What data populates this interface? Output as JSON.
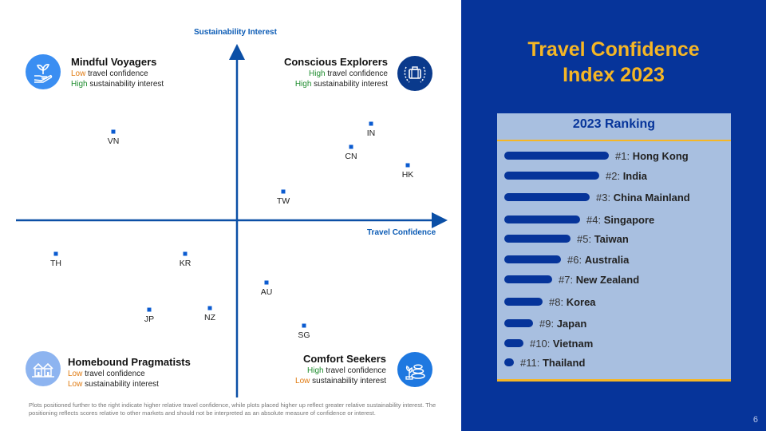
{
  "chart_data": {
    "type": "scatter",
    "xlabel": "Travel Confidence",
    "ylabel": "Sustainability Interest",
    "points": [
      {
        "label": "VN",
        "x": -155,
        "y": 111
      },
      {
        "label": "IN",
        "x": 168,
        "y": 121
      },
      {
        "label": "CN",
        "x": 143,
        "y": 92
      },
      {
        "label": "HK",
        "x": 214,
        "y": 69
      },
      {
        "label": "TW",
        "x": 58,
        "y": 36
      },
      {
        "label": "TH",
        "x": -227,
        "y": -42
      },
      {
        "label": "KR",
        "x": -65,
        "y": -42
      },
      {
        "label": "AU",
        "x": 37,
        "y": -78
      },
      {
        "label": "JP",
        "x": -110,
        "y": -112
      },
      {
        "label": "NZ",
        "x": -34,
        "y": -110
      },
      {
        "label": "SG",
        "x": 84,
        "y": -132
      }
    ],
    "xlim": [
      -277,
      258
    ],
    "ylim": [
      -222,
      218
    ]
  },
  "quadrants": {
    "top_left": {
      "name": "Mindful Voyagers",
      "line1_level": "Low",
      "line1_rest": " travel confidence",
      "line2_level": "High",
      "line2_rest": " sustainability interest",
      "icon": "hand-plant-icon"
    },
    "top_right": {
      "name": "Conscious Explorers",
      "line1_level": "High",
      "line1_rest": " travel confidence",
      "line2_level": "High",
      "line2_rest": " sustainability interest",
      "icon": "suitcase-laurel-icon"
    },
    "bottom_left": {
      "name": "Homebound Pragmatists",
      "line1_level": "Low",
      "line1_rest": " travel confidence",
      "line2_level": "Low",
      "line2_rest": " sustainability interest",
      "icon": "houses-icon"
    },
    "bottom_right": {
      "name": "Comfort Seekers",
      "line1_level": "High",
      "line1_rest": " travel confidence",
      "line2_level": "Low",
      "line2_rest": " sustainability interest",
      "icon": "spa-stones-icon"
    }
  },
  "footnote": "Plots positioned further to the right indicate higher relative travel confidence, while plots placed higher up reflect greater relative sustainability interest. The positioning reflects scores relative to other markets and should not be interpreted as an absolute measure of confidence or interest.",
  "title_line1": "Travel Confidence",
  "title_line2": "Index 2023",
  "ranking": {
    "title": "2023 Ranking",
    "items": [
      {
        "rank": "#1:",
        "market": "Hong Kong",
        "score": 11
      },
      {
        "rank": "#2:",
        "market": "India",
        "score": 10
      },
      {
        "rank": "#3:",
        "market": "China Mainland",
        "score": 9
      },
      {
        "rank": "#4:",
        "market": "Singapore",
        "score": 8
      },
      {
        "rank": "#5:",
        "market": "Taiwan",
        "score": 7
      },
      {
        "rank": "#6:",
        "market": "Australia",
        "score": 6
      },
      {
        "rank": "#7:",
        "market": "New Zealand",
        "score": 5
      },
      {
        "rank": "#8:",
        "market": "Korea",
        "score": 4
      },
      {
        "rank": "#9:",
        "market": "Japan",
        "score": 3
      },
      {
        "rank": "#10:",
        "market": "Vietnam",
        "score": 2
      },
      {
        "rank": "#11:",
        "market": "Thailand",
        "score": 1
      }
    ]
  },
  "page_number": "6",
  "colors": {
    "navy": "#06349a",
    "accent": "#f5b625",
    "point": "#0b5bd0",
    "low": "#e07a10",
    "high": "#1e8c2e"
  }
}
